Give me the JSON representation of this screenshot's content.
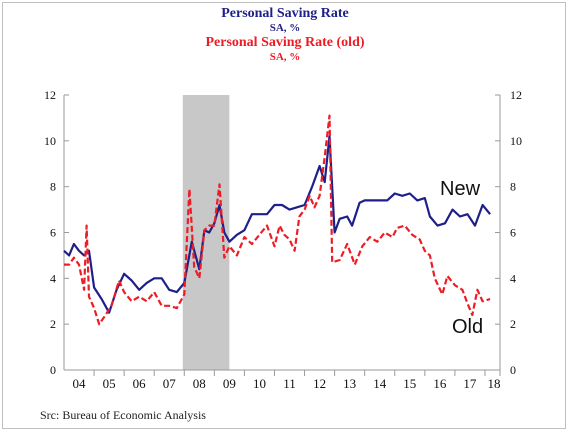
{
  "titles": {
    "line1": "Personal Saving Rate",
    "line2": "SA, %",
    "line3": "Personal Saving Rate (old)",
    "line4": "SA, %"
  },
  "source": "Src: Bureau of Economic Analysis",
  "annotations": {
    "new": "New",
    "old": "Old"
  },
  "colors": {
    "new": "#1f1f8a",
    "old": "#ee1c25",
    "recession": "#c8c8c8",
    "axis": "#9a9a9a"
  },
  "chart_data": {
    "type": "line",
    "title": "Personal Saving Rate",
    "subtitle": "SA, %",
    "xlim": [
      2004.0,
      2018.5
    ],
    "ylim": [
      0,
      12
    ],
    "y_ticks": [
      0,
      2,
      4,
      6,
      8,
      10,
      12
    ],
    "x_tick_labels": [
      "04",
      "05",
      "06",
      "07",
      "08",
      "09",
      "10",
      "11",
      "12",
      "13",
      "14",
      "15",
      "16",
      "17",
      "18"
    ],
    "recession": [
      2007.95,
      2009.5
    ],
    "legend": "titles at top, labels next to lines",
    "grid": false,
    "series": [
      {
        "name": "Personal Saving Rate",
        "style": "solid",
        "points": [
          [
            2004.0,
            5.2
          ],
          [
            2004.17,
            5.0
          ],
          [
            2004.33,
            5.5
          ],
          [
            2004.5,
            5.2
          ],
          [
            2004.67,
            5.0
          ],
          [
            2004.83,
            5.2
          ],
          [
            2005.0,
            3.6
          ],
          [
            2005.25,
            3.1
          ],
          [
            2005.5,
            2.5
          ],
          [
            2005.75,
            3.5
          ],
          [
            2006.0,
            4.2
          ],
          [
            2006.25,
            3.9
          ],
          [
            2006.5,
            3.5
          ],
          [
            2006.75,
            3.8
          ],
          [
            2007.0,
            4.0
          ],
          [
            2007.25,
            4.0
          ],
          [
            2007.5,
            3.5
          ],
          [
            2007.75,
            3.4
          ],
          [
            2008.0,
            3.8
          ],
          [
            2008.25,
            5.6
          ],
          [
            2008.5,
            4.4
          ],
          [
            2008.67,
            6.1
          ],
          [
            2008.83,
            6.0
          ],
          [
            2009.0,
            6.4
          ],
          [
            2009.17,
            7.2
          ],
          [
            2009.33,
            6.0
          ],
          [
            2009.5,
            5.6
          ],
          [
            2009.75,
            5.9
          ],
          [
            2010.0,
            6.1
          ],
          [
            2010.25,
            6.8
          ],
          [
            2010.5,
            6.8
          ],
          [
            2010.75,
            6.8
          ],
          [
            2011.0,
            7.2
          ],
          [
            2011.25,
            7.2
          ],
          [
            2011.5,
            7.0
          ],
          [
            2011.75,
            7.1
          ],
          [
            2012.0,
            7.2
          ],
          [
            2012.25,
            8.0
          ],
          [
            2012.5,
            8.9
          ],
          [
            2012.67,
            8.2
          ],
          [
            2012.83,
            10.2
          ],
          [
            2013.0,
            6.0
          ],
          [
            2013.17,
            6.6
          ],
          [
            2013.42,
            6.7
          ],
          [
            2013.58,
            6.3
          ],
          [
            2013.83,
            7.3
          ],
          [
            2014.0,
            7.4
          ],
          [
            2014.25,
            7.4
          ],
          [
            2014.5,
            7.4
          ],
          [
            2014.75,
            7.4
          ],
          [
            2015.0,
            7.7
          ],
          [
            2015.25,
            7.6
          ],
          [
            2015.5,
            7.7
          ],
          [
            2015.75,
            7.4
          ],
          [
            2016.0,
            7.5
          ],
          [
            2016.17,
            6.7
          ],
          [
            2016.42,
            6.3
          ],
          [
            2016.67,
            6.4
          ],
          [
            2016.92,
            7.0
          ],
          [
            2017.17,
            6.7
          ],
          [
            2017.42,
            6.8
          ],
          [
            2017.67,
            6.3
          ],
          [
            2017.92,
            7.2
          ],
          [
            2018.17,
            6.8
          ]
        ]
      },
      {
        "name": "Personal Saving Rate (old)",
        "style": "dashed",
        "points": [
          [
            2004.0,
            4.6
          ],
          [
            2004.17,
            4.6
          ],
          [
            2004.33,
            4.9
          ],
          [
            2004.5,
            4.6
          ],
          [
            2004.67,
            3.5
          ],
          [
            2004.75,
            6.3
          ],
          [
            2004.83,
            3.2
          ],
          [
            2005.0,
            2.7
          ],
          [
            2005.17,
            2.0
          ],
          [
            2005.33,
            2.3
          ],
          [
            2005.58,
            2.8
          ],
          [
            2005.83,
            3.9
          ],
          [
            2006.0,
            3.4
          ],
          [
            2006.25,
            3.0
          ],
          [
            2006.5,
            3.2
          ],
          [
            2006.75,
            3.0
          ],
          [
            2007.0,
            3.4
          ],
          [
            2007.25,
            2.8
          ],
          [
            2007.5,
            2.8
          ],
          [
            2007.75,
            2.7
          ],
          [
            2008.0,
            3.3
          ],
          [
            2008.17,
            7.9
          ],
          [
            2008.33,
            4.5
          ],
          [
            2008.5,
            4.0
          ],
          [
            2008.67,
            6.1
          ],
          [
            2008.83,
            6.3
          ],
          [
            2009.0,
            6.3
          ],
          [
            2009.17,
            8.1
          ],
          [
            2009.33,
            4.9
          ],
          [
            2009.5,
            5.4
          ],
          [
            2009.75,
            5.0
          ],
          [
            2010.0,
            5.8
          ],
          [
            2010.25,
            5.5
          ],
          [
            2010.5,
            5.9
          ],
          [
            2010.75,
            6.3
          ],
          [
            2011.0,
            5.4
          ],
          [
            2011.17,
            6.3
          ],
          [
            2011.33,
            5.9
          ],
          [
            2011.5,
            5.7
          ],
          [
            2011.67,
            5.2
          ],
          [
            2011.83,
            6.7
          ],
          [
            2012.0,
            7.0
          ],
          [
            2012.17,
            7.6
          ],
          [
            2012.33,
            7.1
          ],
          [
            2012.5,
            7.6
          ],
          [
            2012.67,
            9.3
          ],
          [
            2012.83,
            11.1
          ],
          [
            2012.92,
            4.7
          ],
          [
            2013.17,
            4.8
          ],
          [
            2013.42,
            5.5
          ],
          [
            2013.67,
            4.6
          ],
          [
            2013.92,
            5.4
          ],
          [
            2014.17,
            5.8
          ],
          [
            2014.42,
            5.6
          ],
          [
            2014.67,
            6.0
          ],
          [
            2014.92,
            5.8
          ],
          [
            2015.08,
            6.2
          ],
          [
            2015.33,
            6.3
          ],
          [
            2015.58,
            5.9
          ],
          [
            2015.83,
            5.7
          ],
          [
            2016.0,
            5.2
          ],
          [
            2016.17,
            5.0
          ],
          [
            2016.33,
            4.0
          ],
          [
            2016.58,
            3.3
          ],
          [
            2016.75,
            4.1
          ],
          [
            2017.0,
            3.7
          ],
          [
            2017.25,
            3.5
          ],
          [
            2017.42,
            2.9
          ],
          [
            2017.58,
            2.4
          ],
          [
            2017.75,
            3.5
          ],
          [
            2017.92,
            3.0
          ],
          [
            2018.17,
            3.1
          ]
        ]
      }
    ]
  }
}
